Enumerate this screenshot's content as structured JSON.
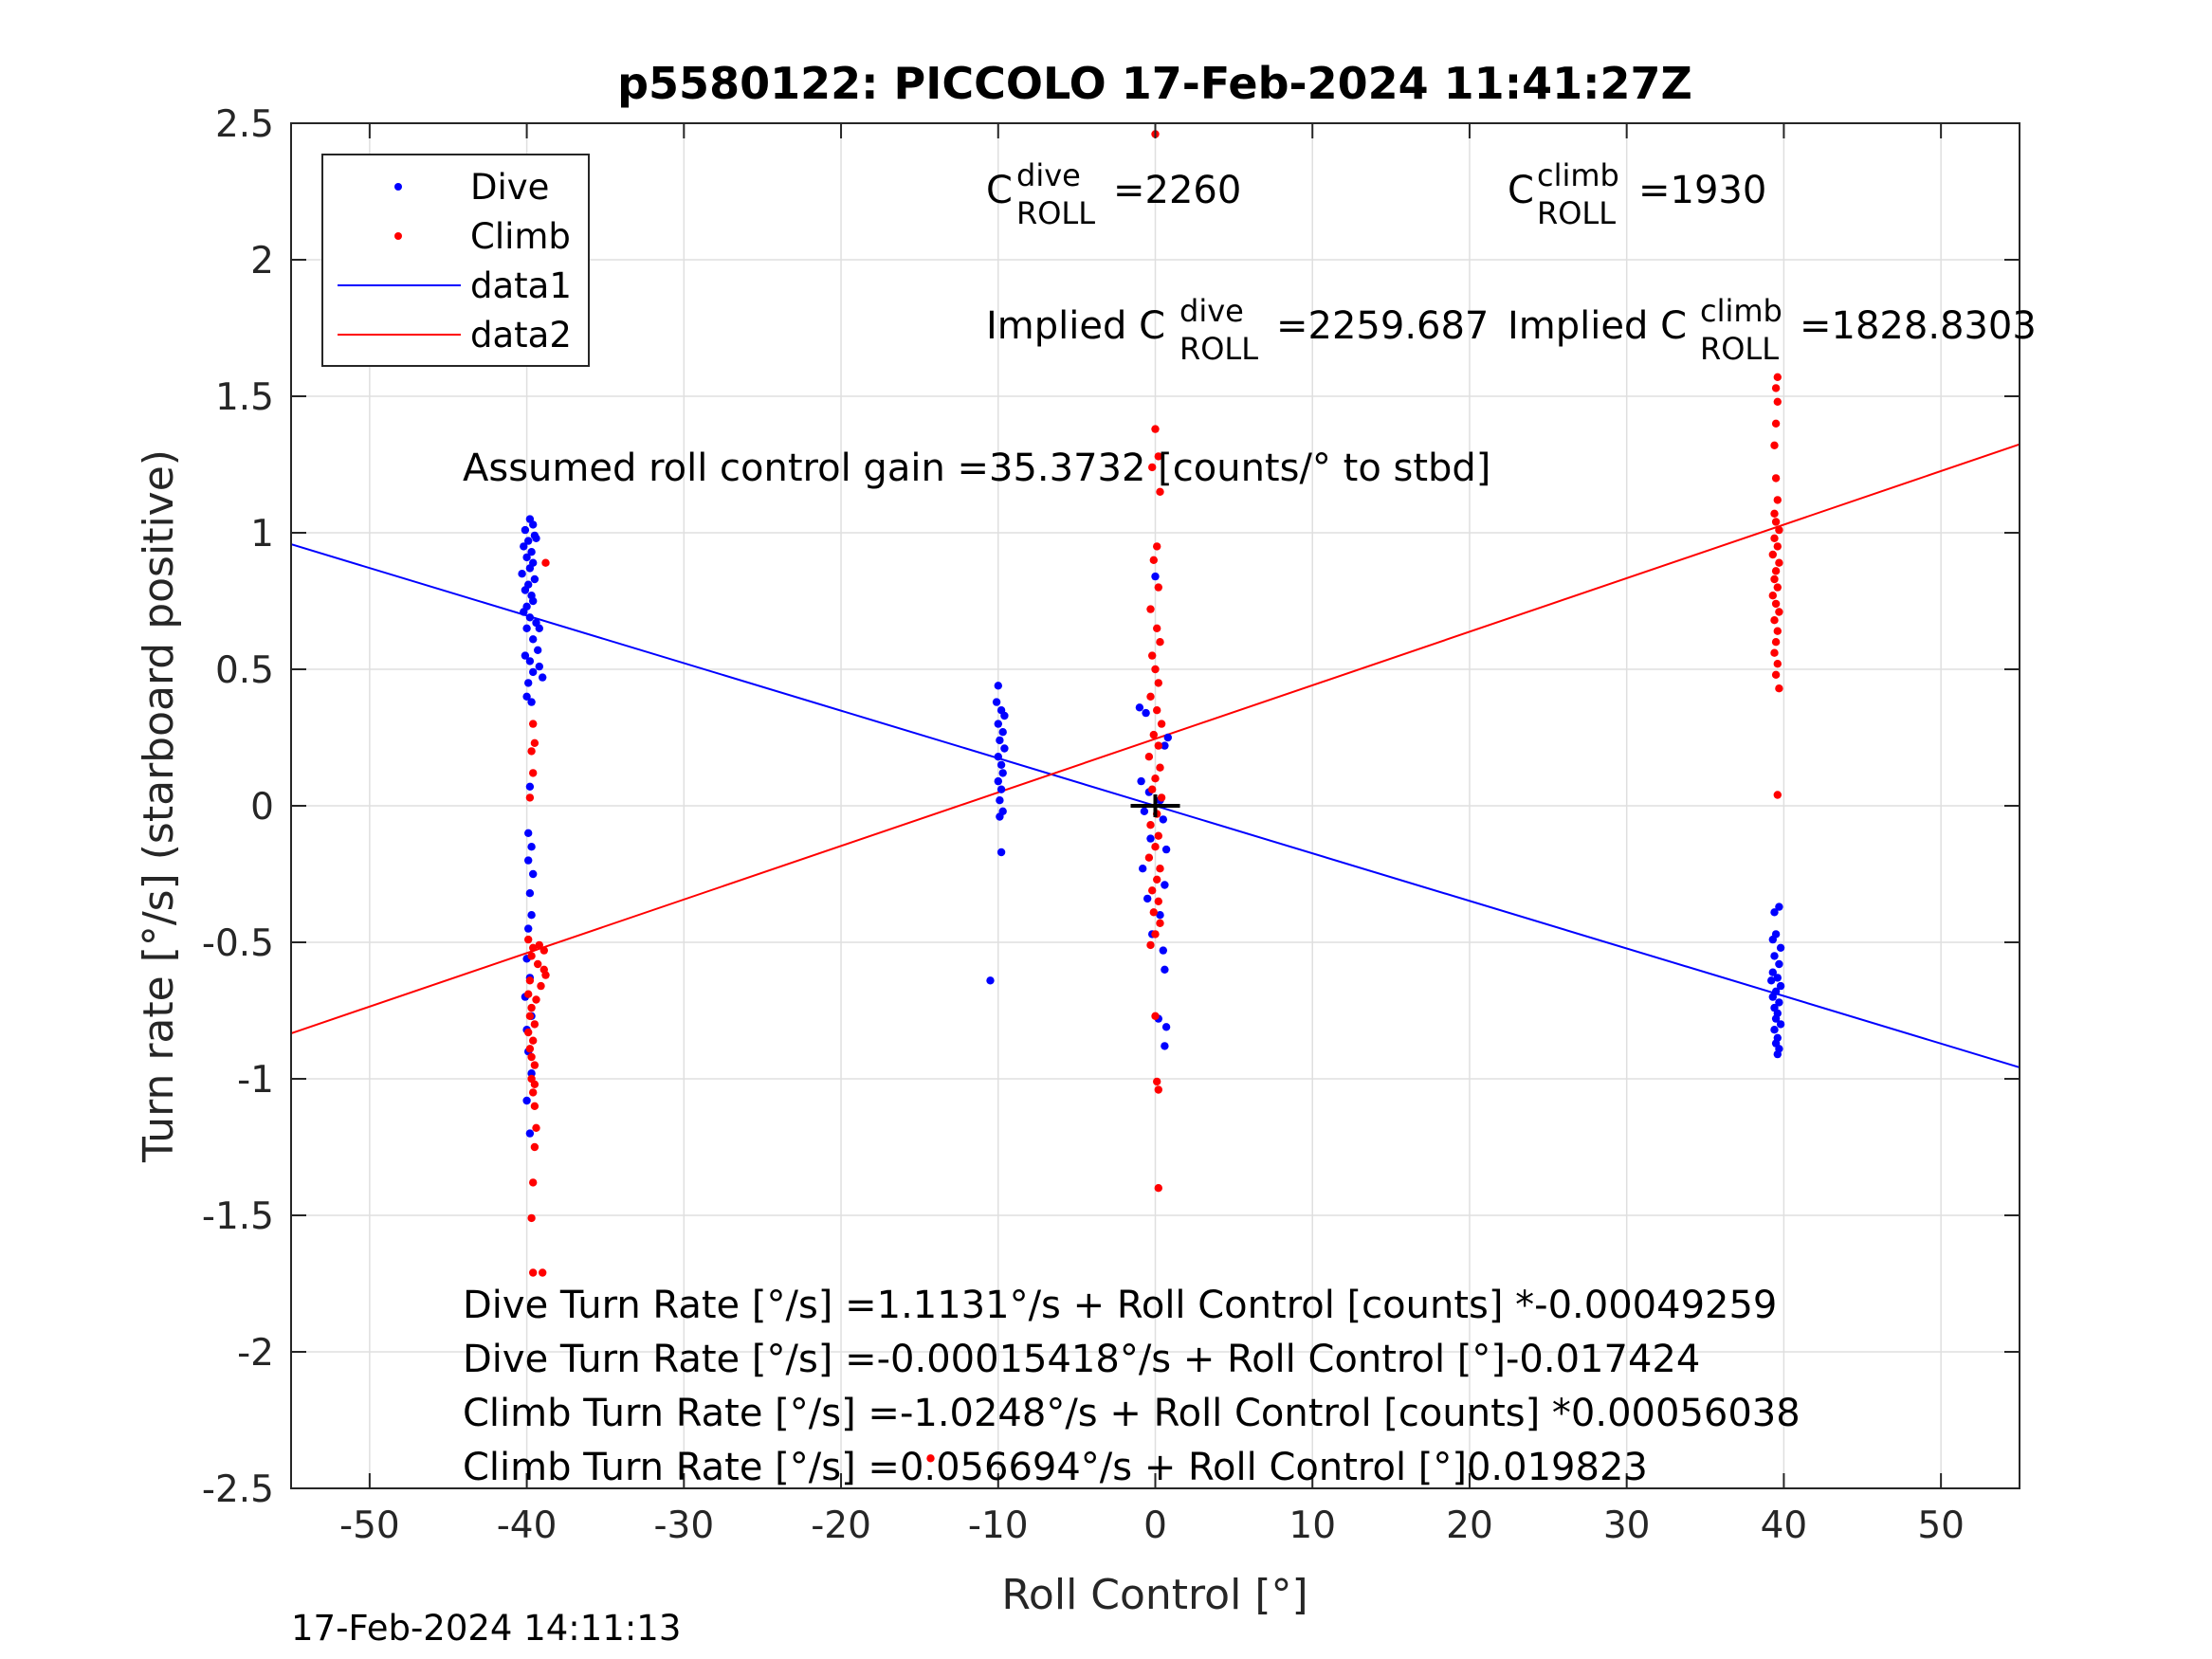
{
  "chart_data": {
    "type": "scatter",
    "title": "p5580122: PICCOLO 17-Feb-2024 11:41:27Z",
    "xlabel": "Roll Control [°]",
    "ylabel": "Turn rate [°/s] (starboard positive)",
    "xlim": [
      -55,
      55
    ],
    "ylim": [
      -2.5,
      2.5
    ],
    "xticks": [
      -50,
      -40,
      -30,
      -20,
      -10,
      0,
      10,
      20,
      30,
      40,
      50
    ],
    "xtick_labels": [
      "-50",
      "-40",
      "-30",
      "-20",
      "-10",
      "0",
      "10",
      "20",
      "30",
      "40",
      "50"
    ],
    "yticks": [
      2.5,
      2,
      1.5,
      1,
      0.5,
      0,
      -0.5,
      -1,
      -1.5,
      -2,
      -2.5
    ],
    "ytick_labels": [
      "2.5",
      "2",
      "1.5",
      "1",
      "0.5",
      "0",
      "-0.5",
      "-1",
      "-1.5",
      "-2",
      "-2.5"
    ],
    "grid": true,
    "legend_position": "top-left",
    "legend": [
      {
        "label": "Dive",
        "kind": "points",
        "color": "#0000ff"
      },
      {
        "label": "Climb",
        "kind": "points",
        "color": "#ff0000"
      },
      {
        "label": "data1",
        "kind": "line",
        "color": "#0000ff"
      },
      {
        "label": "data2",
        "kind": "line",
        "color": "#ff0000"
      }
    ],
    "series": [
      {
        "name": "Dive",
        "kind": "scatter",
        "color": "#0000ff",
        "points": [
          [
            -39.8,
            1.05
          ],
          [
            -39.6,
            1.03
          ],
          [
            -40.1,
            1.01
          ],
          [
            -39.5,
            0.99
          ],
          [
            -39.9,
            0.97
          ],
          [
            -39.4,
            0.98
          ],
          [
            -40.2,
            0.95
          ],
          [
            -39.7,
            0.93
          ],
          [
            -40.0,
            0.91
          ],
          [
            -39.6,
            0.89
          ],
          [
            -39.8,
            0.87
          ],
          [
            -40.3,
            0.85
          ],
          [
            -39.5,
            0.83
          ],
          [
            -39.9,
            0.81
          ],
          [
            -40.1,
            0.79
          ],
          [
            -39.7,
            0.77
          ],
          [
            -39.6,
            0.75
          ],
          [
            -40.0,
            0.73
          ],
          [
            -40.2,
            0.71
          ],
          [
            -39.8,
            0.69
          ],
          [
            -39.4,
            0.67
          ],
          [
            -40.0,
            0.65
          ],
          [
            -39.2,
            0.65
          ],
          [
            -39.6,
            0.61
          ],
          [
            -39.3,
            0.57
          ],
          [
            -40.1,
            0.55
          ],
          [
            -39.8,
            0.53
          ],
          [
            -39.2,
            0.51
          ],
          [
            -39.6,
            0.49
          ],
          [
            -39.0,
            0.47
          ],
          [
            -39.9,
            0.45
          ],
          [
            -40.0,
            0.4
          ],
          [
            -39.7,
            0.38
          ],
          [
            -39.8,
            0.07
          ],
          [
            -39.9,
            -0.1
          ],
          [
            -39.7,
            -0.15
          ],
          [
            -39.9,
            -0.2
          ],
          [
            -39.6,
            -0.25
          ],
          [
            -39.8,
            -0.32
          ],
          [
            -39.7,
            -0.4
          ],
          [
            -39.9,
            -0.45
          ],
          [
            -40.0,
            -0.56
          ],
          [
            -39.8,
            -0.63
          ],
          [
            -40.1,
            -0.7
          ],
          [
            -39.7,
            -0.77
          ],
          [
            -40.0,
            -0.82
          ],
          [
            -39.9,
            -0.9
          ],
          [
            -39.7,
            -0.98
          ],
          [
            -40.0,
            -1.08
          ],
          [
            -39.8,
            -1.2
          ],
          [
            -10.0,
            0.44
          ],
          [
            -10.1,
            0.38
          ],
          [
            -9.8,
            0.35
          ],
          [
            -9.6,
            0.33
          ],
          [
            -10.0,
            0.3
          ],
          [
            -9.7,
            0.27
          ],
          [
            -9.9,
            0.24
          ],
          [
            -9.6,
            0.21
          ],
          [
            -10.0,
            0.18
          ],
          [
            -9.8,
            0.15
          ],
          [
            -9.7,
            0.12
          ],
          [
            -10.0,
            0.09
          ],
          [
            -9.8,
            0.06
          ],
          [
            -9.9,
            0.02
          ],
          [
            -9.7,
            -0.02
          ],
          [
            -9.9,
            -0.04
          ],
          [
            -9.8,
            -0.17
          ],
          [
            -10.5,
            -0.64
          ],
          [
            -1.0,
            0.36
          ],
          [
            -0.6,
            0.34
          ],
          [
            0.8,
            0.25
          ],
          [
            0.6,
            0.22
          ],
          [
            -0.9,
            0.09
          ],
          [
            -0.4,
            0.05
          ],
          [
            0.3,
            0.02
          ],
          [
            -0.7,
            -0.02
          ],
          [
            0.5,
            -0.05
          ],
          [
            -0.3,
            -0.12
          ],
          [
            0.7,
            -0.16
          ],
          [
            -0.8,
            -0.23
          ],
          [
            0.6,
            -0.29
          ],
          [
            -0.5,
            -0.34
          ],
          [
            0.3,
            -0.4
          ],
          [
            -0.2,
            -0.47
          ],
          [
            0.5,
            -0.53
          ],
          [
            0.6,
            -0.6
          ],
          [
            0.2,
            -0.78
          ],
          [
            0.7,
            -0.81
          ],
          [
            0.6,
            -0.88
          ],
          [
            0.0,
            0.84
          ],
          [
            39.4,
            -0.39
          ],
          [
            39.7,
            -0.37
          ],
          [
            39.5,
            -0.47
          ],
          [
            39.3,
            -0.49
          ],
          [
            39.8,
            -0.52
          ],
          [
            39.4,
            -0.55
          ],
          [
            39.7,
            -0.58
          ],
          [
            39.3,
            -0.61
          ],
          [
            39.6,
            -0.63
          ],
          [
            39.2,
            -0.64
          ],
          [
            39.8,
            -0.66
          ],
          [
            39.5,
            -0.68
          ],
          [
            39.3,
            -0.7
          ],
          [
            39.7,
            -0.72
          ],
          [
            39.4,
            -0.74
          ],
          [
            39.6,
            -0.76
          ],
          [
            39.5,
            -0.78
          ],
          [
            39.8,
            -0.8
          ],
          [
            39.4,
            -0.82
          ],
          [
            39.6,
            -0.85
          ],
          [
            39.5,
            -0.87
          ],
          [
            39.7,
            -0.89
          ],
          [
            39.6,
            -0.91
          ]
        ]
      },
      {
        "name": "Climb",
        "kind": "scatter",
        "color": "#ff0000",
        "points": [
          [
            0.0,
            2.46
          ],
          [
            0.0,
            1.38
          ],
          [
            0.2,
            1.28
          ],
          [
            -0.2,
            1.24
          ],
          [
            0.3,
            1.15
          ],
          [
            0.1,
            0.95
          ],
          [
            -0.1,
            0.9
          ],
          [
            0.2,
            0.8
          ],
          [
            -0.3,
            0.72
          ],
          [
            0.1,
            0.65
          ],
          [
            0.3,
            0.6
          ],
          [
            -0.2,
            0.55
          ],
          [
            0.0,
            0.5
          ],
          [
            0.2,
            0.45
          ],
          [
            -0.3,
            0.4
          ],
          [
            0.1,
            0.35
          ],
          [
            0.4,
            0.3
          ],
          [
            -0.1,
            0.26
          ],
          [
            0.2,
            0.22
          ],
          [
            -0.4,
            0.18
          ],
          [
            0.3,
            0.14
          ],
          [
            0.0,
            0.1
          ],
          [
            -0.2,
            0.06
          ],
          [
            0.4,
            0.03
          ],
          [
            0.1,
            -0.03
          ],
          [
            -0.3,
            -0.07
          ],
          [
            0.2,
            -0.11
          ],
          [
            0.0,
            -0.15
          ],
          [
            -0.4,
            -0.19
          ],
          [
            0.3,
            -0.23
          ],
          [
            0.1,
            -0.27
          ],
          [
            -0.2,
            -0.31
          ],
          [
            0.2,
            -0.35
          ],
          [
            -0.1,
            -0.39
          ],
          [
            0.3,
            -0.43
          ],
          [
            0.0,
            -0.47
          ],
          [
            -0.3,
            -0.51
          ],
          [
            0.0,
            -0.77
          ],
          [
            0.1,
            -1.01
          ],
          [
            0.2,
            -1.04
          ],
          [
            0.2,
            -1.4
          ],
          [
            -38.8,
            0.89
          ],
          [
            -39.6,
            0.3
          ],
          [
            -39.5,
            0.23
          ],
          [
            -39.7,
            0.2
          ],
          [
            -39.6,
            0.12
          ],
          [
            -39.8,
            0.03
          ],
          [
            -39.6,
            -0.52
          ],
          [
            -39.9,
            -0.49
          ],
          [
            -39.2,
            -0.51
          ],
          [
            -38.9,
            -0.53
          ],
          [
            -39.7,
            -0.55
          ],
          [
            -39.3,
            -0.58
          ],
          [
            -38.8,
            -0.62
          ],
          [
            -39.8,
            -0.64
          ],
          [
            -39.1,
            -0.66
          ],
          [
            -38.9,
            -0.6
          ],
          [
            -39.9,
            -0.69
          ],
          [
            -39.4,
            -0.71
          ],
          [
            -39.7,
            -0.74
          ],
          [
            -39.8,
            -0.77
          ],
          [
            -39.5,
            -0.8
          ],
          [
            -39.9,
            -0.83
          ],
          [
            -39.6,
            -0.86
          ],
          [
            -39.8,
            -0.89
          ],
          [
            -39.7,
            -0.92
          ],
          [
            -39.5,
            -0.95
          ],
          [
            -39.7,
            -1.0
          ],
          [
            -39.5,
            -1.02
          ],
          [
            -39.6,
            -1.05
          ],
          [
            -39.5,
            -1.1
          ],
          [
            -39.4,
            -1.18
          ],
          [
            -39.5,
            -1.25
          ],
          [
            -39.6,
            -1.38
          ],
          [
            -39.7,
            -1.51
          ],
          [
            -39.6,
            -1.71
          ],
          [
            -39.0,
            -1.71
          ],
          [
            -14.3,
            -2.39
          ],
          [
            39.6,
            1.57
          ],
          [
            39.5,
            1.53
          ],
          [
            39.6,
            1.48
          ],
          [
            39.5,
            1.4
          ],
          [
            39.4,
            1.32
          ],
          [
            39.5,
            1.2
          ],
          [
            39.6,
            1.12
          ],
          [
            39.4,
            1.07
          ],
          [
            39.5,
            1.04
          ],
          [
            39.7,
            1.01
          ],
          [
            39.4,
            0.98
          ],
          [
            39.6,
            0.95
          ],
          [
            39.3,
            0.92
          ],
          [
            39.7,
            0.89
          ],
          [
            39.5,
            0.86
          ],
          [
            39.4,
            0.83
          ],
          [
            39.6,
            0.8
          ],
          [
            39.3,
            0.77
          ],
          [
            39.5,
            0.74
          ],
          [
            39.7,
            0.71
          ],
          [
            39.4,
            0.68
          ],
          [
            39.6,
            0.64
          ],
          [
            39.5,
            0.6
          ],
          [
            39.4,
            0.56
          ],
          [
            39.6,
            0.52
          ],
          [
            39.5,
            0.48
          ],
          [
            39.7,
            0.43
          ],
          [
            39.6,
            0.04
          ]
        ]
      },
      {
        "name": "data1",
        "kind": "line",
        "color": "#0000ff",
        "x": [
          -55,
          55
        ],
        "y": [
          0.958,
          -0.958
        ]
      },
      {
        "name": "data2",
        "kind": "line",
        "color": "#ff0000",
        "x": [
          -55,
          55
        ],
        "y": [
          -0.8335,
          1.324
        ]
      }
    ],
    "center_marker": {
      "x": 0,
      "y": 0,
      "color": "#000000"
    }
  },
  "annotations": {
    "c_dive_base": "C",
    "c_dive_sup": "dive",
    "c_dive_sub": "ROLL",
    "c_dive_value": "=2260",
    "c_climb_base": "C",
    "c_climb_sup": "climb",
    "c_climb_sub": "ROLL",
    "c_climb_value": "=1930",
    "implied_prefix": "Implied C",
    "implied_dive_sup": "dive",
    "implied_dive_sub": "ROLL",
    "implied_dive_value": "=2259.687",
    "implied_climb_sup": "climb",
    "implied_climb_sub": "ROLL",
    "implied_climb_value": "=1828.8303",
    "assumed_gain": "Assumed roll control gain =35.3732 [counts/° to stbd]",
    "fit_lines": [
      "Dive Turn Rate [°/s] =1.1131°/s + Roll Control [counts] *-0.00049259",
      "Dive Turn Rate [°/s] =-0.00015418°/s + Roll Control [°]-0.017424",
      "Climb Turn Rate [°/s] =-1.0248°/s + Roll Control [counts] *0.00056038",
      "Climb Turn Rate [°/s] =0.056694°/s + Roll Control [°]0.019823"
    ]
  },
  "footer_timestamp": "17-Feb-2024 14:11:13"
}
